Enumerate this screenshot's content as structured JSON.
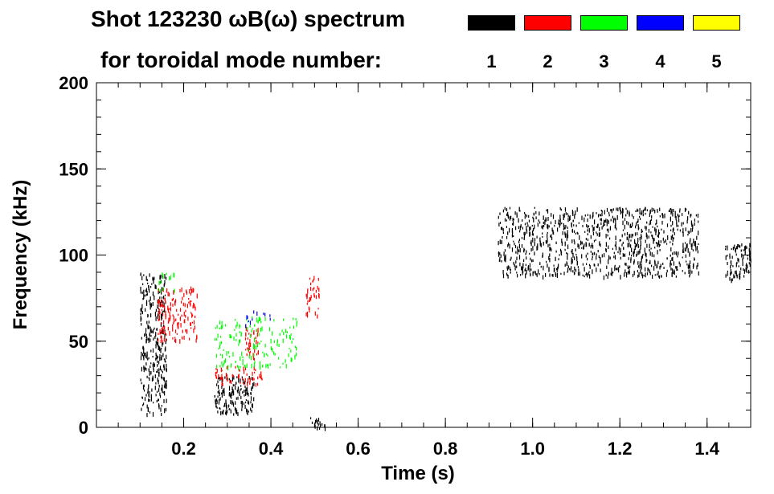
{
  "chart_data": {
    "type": "heatmap",
    "title_line1": "Shot 123230 ωB(ω) spectrum",
    "title_line2": "for toroidal mode number:",
    "xlabel": "Time (s)",
    "ylabel": "Frequency (kHz)",
    "xlim": [
      0.0,
      1.5
    ],
    "ylim": [
      0,
      200
    ],
    "x_ticks": [
      0.2,
      0.4,
      0.6,
      0.8,
      1.0,
      1.2,
      1.4
    ],
    "x_tick_labels": [
      "0.2",
      "0.4",
      "0.6",
      "0.8",
      "1.0",
      "1.2",
      "1.4"
    ],
    "y_ticks": [
      0,
      50,
      100,
      150,
      200
    ],
    "y_tick_labels": [
      "0",
      "50",
      "100",
      "150",
      "200"
    ],
    "legend": [
      {
        "mode": "1",
        "color": "#000000"
      },
      {
        "mode": "2",
        "color": "#ff0000"
      },
      {
        "mode": "3",
        "color": "#00ff00"
      },
      {
        "mode": "4",
        "color": "#0000ff"
      },
      {
        "mode": "5",
        "color": "#ffff00"
      }
    ],
    "regions": [
      {
        "mode": 1,
        "t": [
          0.1,
          0.16
        ],
        "f": [
          8,
          90
        ],
        "density": 0.55
      },
      {
        "mode": 1,
        "t": [
          0.27,
          0.36
        ],
        "f": [
          8,
          30
        ],
        "density": 0.7
      },
      {
        "mode": 1,
        "t": [
          0.49,
          0.53
        ],
        "f": [
          0,
          6
        ],
        "density": 0.6
      },
      {
        "mode": 1,
        "t": [
          0.92,
          1.38
        ],
        "f": [
          88,
          128
        ],
        "density": 0.45
      },
      {
        "mode": 1,
        "t": [
          1.44,
          1.5
        ],
        "f": [
          86,
          107
        ],
        "density": 0.6
      },
      {
        "mode": 2,
        "t": [
          0.14,
          0.23
        ],
        "f": [
          50,
          82
        ],
        "density": 0.45
      },
      {
        "mode": 2,
        "t": [
          0.27,
          0.38
        ],
        "f": [
          25,
          36
        ],
        "density": 0.4
      },
      {
        "mode": 2,
        "t": [
          0.34,
          0.37
        ],
        "f": [
          40,
          60
        ],
        "density": 0.6
      },
      {
        "mode": 2,
        "t": [
          0.48,
          0.51
        ],
        "f": [
          65,
          88
        ],
        "density": 0.45
      },
      {
        "mode": 3,
        "t": [
          0.27,
          0.46
        ],
        "f": [
          35,
          65
        ],
        "density": 0.25
      },
      {
        "mode": 3,
        "t": [
          0.14,
          0.18
        ],
        "f": [
          80,
          90
        ],
        "density": 0.3
      },
      {
        "mode": 4,
        "t": [
          0.33,
          0.4
        ],
        "f": [
          58,
          68
        ],
        "density": 0.15
      }
    ]
  }
}
